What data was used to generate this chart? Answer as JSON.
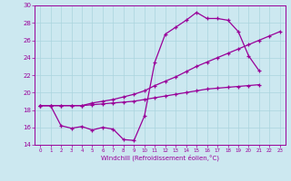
{
  "xlabel": "Windchill (Refroidissement éolien,°C)",
  "xlim": [
    -0.5,
    23.5
  ],
  "ylim": [
    14,
    30
  ],
  "xticks": [
    0,
    1,
    2,
    3,
    4,
    5,
    6,
    7,
    8,
    9,
    10,
    11,
    12,
    13,
    14,
    15,
    16,
    17,
    18,
    19,
    20,
    21,
    22,
    23
  ],
  "yticks": [
    14,
    16,
    18,
    20,
    22,
    24,
    26,
    28,
    30
  ],
  "bg_color": "#cce8f0",
  "line_color": "#990099",
  "grid_color": "#aad4de",
  "line1_y": [
    18.5,
    18.5,
    16.2,
    15.9,
    16.1,
    15.7,
    16.0,
    15.8,
    14.6,
    14.5,
    17.3,
    23.5,
    26.7,
    27.5,
    28.3,
    29.2,
    28.5,
    28.5,
    28.3,
    27.0,
    24.2,
    22.5,
    null,
    null
  ],
  "line2_y": [
    18.5,
    18.5,
    18.5,
    18.5,
    18.5,
    18.8,
    19.0,
    19.2,
    19.5,
    19.8,
    20.2,
    20.8,
    21.3,
    21.8,
    22.4,
    23.0,
    23.5,
    24.0,
    24.5,
    25.0,
    25.5,
    26.0,
    26.5,
    27.0
  ],
  "line3_y": [
    18.5,
    18.5,
    18.5,
    18.5,
    18.5,
    18.6,
    18.7,
    18.8,
    18.9,
    19.0,
    19.2,
    19.4,
    19.6,
    19.8,
    20.0,
    20.2,
    20.4,
    20.5,
    20.6,
    20.7,
    20.8,
    20.9,
    null,
    null
  ]
}
